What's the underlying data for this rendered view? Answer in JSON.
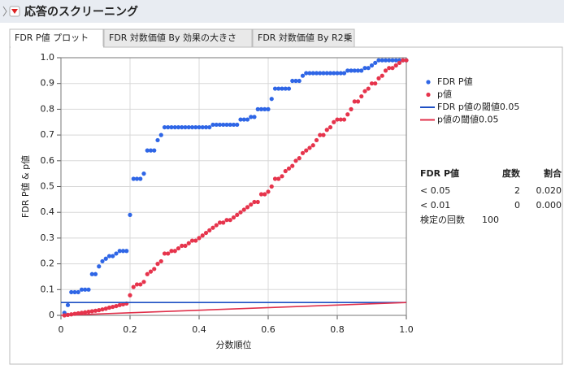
{
  "header": {
    "title": "応答のスクリーニング"
  },
  "tabs": [
    "FDR P値 プロット",
    "FDR 対数価値 By 効果の大きさ",
    "FDR 対数価値 By R2乗"
  ],
  "chart_data": {
    "type": "scatter",
    "xlabel": "分数順位",
    "ylabel": "FDR P値 & p値",
    "xlim": [
      0,
      1
    ],
    "ylim": [
      0,
      1
    ],
    "xticks": [
      0,
      0.2,
      0.4,
      0.6,
      0.8,
      {
        "value": 1,
        "label": "1.0"
      }
    ],
    "yticks": [
      0,
      0.1,
      0.2,
      0.3,
      0.4,
      0.5,
      0.6,
      0.7,
      0.8,
      0.9,
      {
        "value": 1,
        "label": "1.0"
      }
    ],
    "grid": true,
    "x": [
      0.01,
      0.02,
      0.03,
      0.04,
      0.05,
      0.06,
      0.07,
      0.08,
      0.09,
      0.1,
      0.11,
      0.12,
      0.13,
      0.14,
      0.15,
      0.16,
      0.17,
      0.18,
      0.19,
      0.2,
      0.21,
      0.22,
      0.23,
      0.24,
      0.25,
      0.26,
      0.27,
      0.28,
      0.29,
      0.3,
      0.31,
      0.32,
      0.33,
      0.34,
      0.35,
      0.36,
      0.37,
      0.38,
      0.39,
      0.4,
      0.41,
      0.42,
      0.43,
      0.44,
      0.45,
      0.46,
      0.47,
      0.48,
      0.49,
      0.5,
      0.51,
      0.52,
      0.53,
      0.54,
      0.55,
      0.56,
      0.57,
      0.58,
      0.59,
      0.6,
      0.61,
      0.62,
      0.63,
      0.64,
      0.65,
      0.66,
      0.67,
      0.68,
      0.69,
      0.7,
      0.71,
      0.72,
      0.73,
      0.74,
      0.75,
      0.76,
      0.77,
      0.78,
      0.79,
      0.8,
      0.81,
      0.82,
      0.83,
      0.84,
      0.85,
      0.86,
      0.87,
      0.88,
      0.89,
      0.9,
      0.91,
      0.92,
      0.93,
      0.94,
      0.95,
      0.96,
      0.97,
      0.98,
      0.99,
      1
    ],
    "series": [
      {
        "name": "FDR P値",
        "color": "#2f66e6",
        "mode": "markers",
        "values": [
          0.01,
          0.04,
          0.09,
          0.09,
          0.09,
          0.1,
          0.1,
          0.1,
          0.16,
          0.16,
          0.19,
          0.21,
          0.22,
          0.23,
          0.23,
          0.24,
          0.25,
          0.25,
          0.25,
          0.39,
          0.53,
          0.53,
          0.53,
          0.55,
          0.64,
          0.64,
          0.64,
          0.68,
          0.7,
          0.73,
          0.73,
          0.73,
          0.73,
          0.73,
          0.73,
          0.73,
          0.73,
          0.73,
          0.73,
          0.73,
          0.73,
          0.73,
          0.73,
          0.74,
          0.74,
          0.74,
          0.74,
          0.74,
          0.74,
          0.74,
          0.74,
          0.76,
          0.76,
          0.76,
          0.77,
          0.77,
          0.8,
          0.8,
          0.8,
          0.8,
          0.84,
          0.88,
          0.88,
          0.88,
          0.88,
          0.88,
          0.91,
          0.91,
          0.91,
          0.93,
          0.94,
          0.94,
          0.94,
          0.94,
          0.94,
          0.94,
          0.94,
          0.94,
          0.94,
          0.94,
          0.94,
          0.94,
          0.95,
          0.95,
          0.95,
          0.95,
          0.95,
          0.96,
          0.96,
          0.97,
          0.98,
          0.99,
          0.99,
          0.99,
          0.99,
          0.99,
          0.99,
          0.99,
          0.99,
          0.99
        ]
      },
      {
        "name": "p値",
        "color": "#e6344c",
        "mode": "markers",
        "values": [
          0,
          0.002,
          0.004,
          0.006,
          0.008,
          0.01,
          0.012,
          0.014,
          0.016,
          0.018,
          0.02,
          0.023,
          0.026,
          0.03,
          0.033,
          0.036,
          0.04,
          0.043,
          0.046,
          0.078,
          0.11,
          0.12,
          0.12,
          0.13,
          0.16,
          0.17,
          0.18,
          0.2,
          0.21,
          0.24,
          0.24,
          0.25,
          0.25,
          0.26,
          0.27,
          0.27,
          0.28,
          0.29,
          0.29,
          0.3,
          0.31,
          0.32,
          0.33,
          0.34,
          0.35,
          0.36,
          0.36,
          0.37,
          0.37,
          0.38,
          0.39,
          0.4,
          0.41,
          0.42,
          0.43,
          0.44,
          0.44,
          0.47,
          0.47,
          0.48,
          0.5,
          0.53,
          0.53,
          0.54,
          0.56,
          0.57,
          0.58,
          0.6,
          0.61,
          0.63,
          0.64,
          0.65,
          0.66,
          0.68,
          0.7,
          0.7,
          0.72,
          0.73,
          0.75,
          0.76,
          0.76,
          0.76,
          0.78,
          0.8,
          0.83,
          0.83,
          0.85,
          0.87,
          0.88,
          0.9,
          0.9,
          0.92,
          0.93,
          0.95,
          0.96,
          0.96,
          0.97,
          0.98,
          0.99,
          0.99
        ]
      },
      {
        "name": "FDR p値の閾値0.05",
        "color": "#1f50c4",
        "mode": "line",
        "x": [
          0,
          1
        ],
        "values": [
          0.05,
          0.05
        ]
      },
      {
        "name": "p値の閾値0.05",
        "color": "#e0304a",
        "mode": "line",
        "x": [
          0,
          1
        ],
        "values": [
          0,
          0.05
        ]
      }
    ]
  },
  "table": {
    "headers": [
      "FDR P値",
      "度数",
      "割合"
    ],
    "rows": [
      [
        "< 0.05",
        "2",
        "0.020"
      ],
      [
        "< 0.01",
        "0",
        "0.000"
      ]
    ],
    "tests": {
      "label": "検定の回数",
      "value": "100"
    }
  }
}
